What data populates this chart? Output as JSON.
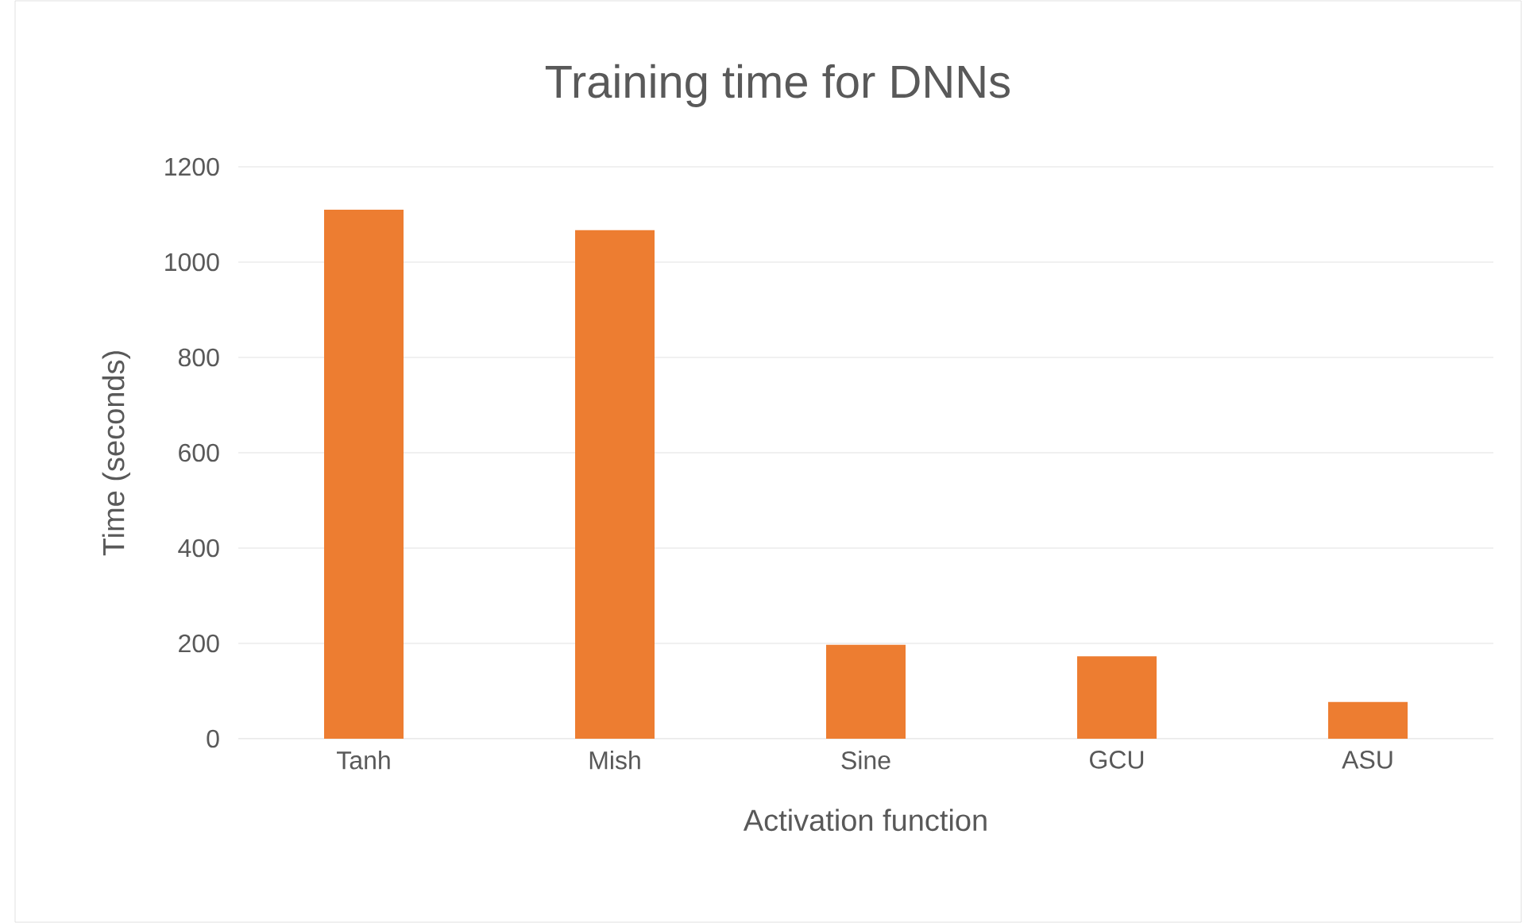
{
  "chart_data": {
    "type": "bar",
    "title": "Training time for DNNs",
    "xlabel": "Activation function",
    "ylabel": "Time (seconds)",
    "categories": [
      "Tanh",
      "Mish",
      "Sine",
      "GCU",
      "ASU"
    ],
    "values": [
      1110,
      1067,
      197,
      173,
      77
    ],
    "color": "#ed7d31",
    "ylim": [
      0,
      1200
    ],
    "yticks": [
      0,
      200,
      400,
      600,
      800,
      1000,
      1200
    ],
    "grid": "y"
  }
}
